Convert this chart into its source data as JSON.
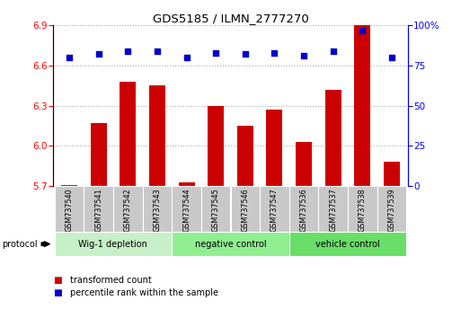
{
  "title": "GDS5185 / ILMN_2777270",
  "samples": [
    "GSM737540",
    "GSM737541",
    "GSM737542",
    "GSM737543",
    "GSM737544",
    "GSM737545",
    "GSM737546",
    "GSM737547",
    "GSM737536",
    "GSM737537",
    "GSM737538",
    "GSM737539"
  ],
  "transformed_counts": [
    5.71,
    6.17,
    6.48,
    6.45,
    5.73,
    6.3,
    6.15,
    6.27,
    6.03,
    6.42,
    6.91,
    5.88
  ],
  "percentile_ranks": [
    80,
    82,
    84,
    84,
    80,
    83,
    82,
    83,
    81,
    84,
    97,
    80
  ],
  "groups": [
    {
      "label": "Wig-1 depletion",
      "indices": [
        0,
        1,
        2,
        3
      ],
      "color": "#c8f0c8"
    },
    {
      "label": "negative control",
      "indices": [
        4,
        5,
        6,
        7
      ],
      "color": "#90ee90"
    },
    {
      "label": "vehicle control",
      "indices": [
        8,
        9,
        10,
        11
      ],
      "color": "#68dd68"
    }
  ],
  "ylim_left": [
    5.7,
    6.9
  ],
  "ylim_right": [
    0,
    100
  ],
  "yticks_left": [
    5.7,
    6.0,
    6.3,
    6.6,
    6.9
  ],
  "yticks_right": [
    0,
    25,
    50,
    75,
    100
  ],
  "bar_color": "#cc0000",
  "dot_color": "#0000cc",
  "bar_base": 5.7,
  "grid_color": "#aaaaaa",
  "sample_box_color": "#c8c8c8",
  "protocol_label": "protocol",
  "legend_red": "transformed count",
  "legend_blue": "percentile rank within the sample"
}
